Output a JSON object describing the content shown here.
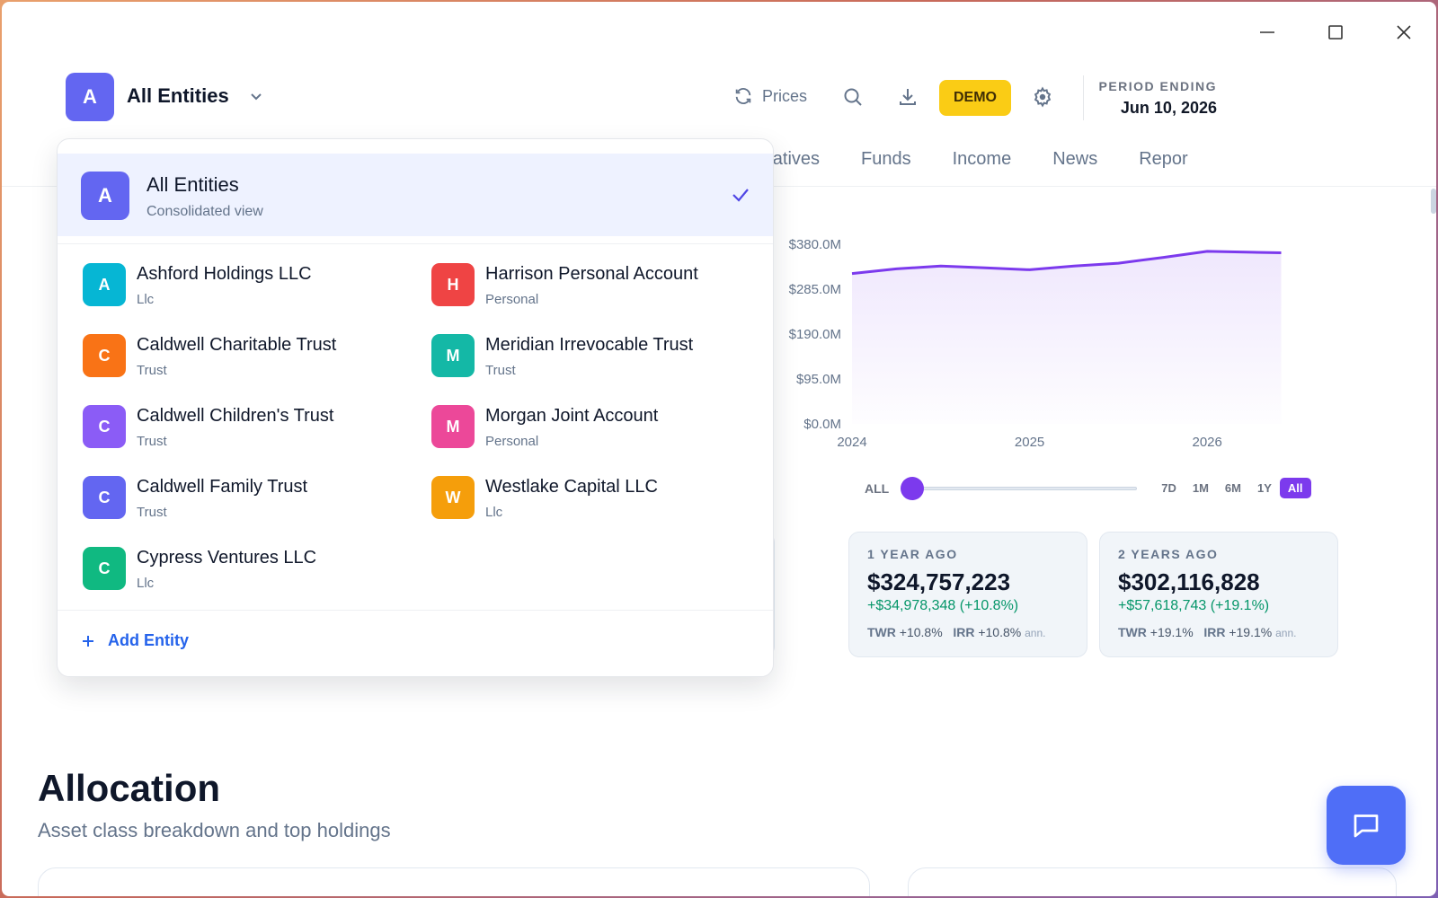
{
  "window": {
    "controls": [
      "minimize-icon",
      "maximize-icon",
      "close-icon"
    ]
  },
  "header": {
    "entity_initial": "A",
    "entity_title": "All Entities",
    "prices_label": "Prices",
    "demo_label": "DEMO",
    "period_label": "PERIOD ENDING",
    "period_value": "Jun 10, 2026",
    "icons": [
      "refresh-icon",
      "search-icon",
      "download-icon",
      "gear-icon"
    ]
  },
  "tabs": [
    {
      "label": "rnatives"
    },
    {
      "label": "Funds"
    },
    {
      "label": "Income"
    },
    {
      "label": "News"
    },
    {
      "label": "Repor"
    }
  ],
  "chart_data": {
    "type": "area",
    "x": [
      "2024-01",
      "2024-04",
      "2024-07",
      "2024-10",
      "2025-01",
      "2025-04",
      "2025-07",
      "2025-10",
      "2026-01",
      "2026-04",
      "2026-06"
    ],
    "values": [
      318,
      328,
      334,
      330,
      326,
      334,
      340,
      352,
      365,
      363,
      362
    ],
    "y_tick_labels": [
      "$380.0M",
      "$285.0M",
      "$190.0M",
      "$95.0M",
      "$0.0M"
    ],
    "x_tick_labels": [
      "2024",
      "2025",
      "2026"
    ],
    "ylim": [
      0,
      380
    ],
    "color": "#7c3aed"
  },
  "range": {
    "all_label": "ALL",
    "buttons": [
      {
        "label": "7D",
        "active": false
      },
      {
        "label": "1M",
        "active": false
      },
      {
        "label": "6M",
        "active": false
      },
      {
        "label": "1Y",
        "active": false
      },
      {
        "label": "All",
        "active": true
      }
    ]
  },
  "stats": [
    {
      "label": "1 YEAR AGO",
      "value": "$324,757,223",
      "change": "+$34,978,348 (+10.8%)",
      "twr_label": "TWR",
      "twr": "+10.8%",
      "irr_label": "IRR",
      "irr": "+10.8%",
      "ann": "ann."
    },
    {
      "label": "2 YEARS AGO",
      "value": "$302,116,828",
      "change": "+$57,618,743 (+19.1%)",
      "twr_label": "TWR",
      "twr": "+19.1%",
      "irr_label": "IRR",
      "irr": "+19.1%",
      "ann": "ann."
    }
  ],
  "allocation": {
    "title": "Allocation",
    "subtitle": "Asset class breakdown and top holdings"
  },
  "dropdown": {
    "selected": {
      "initial": "A",
      "title": "All Entities",
      "subtitle": "Consolidated view"
    },
    "items": [
      {
        "initial": "A",
        "name": "Ashford Holdings LLC",
        "type": "Llc",
        "color": "#06b6d4"
      },
      {
        "initial": "H",
        "name": "Harrison Personal Account",
        "type": "Personal",
        "color": "#ef4444"
      },
      {
        "initial": "C",
        "name": "Caldwell Charitable Trust",
        "type": "Trust",
        "color": "#f97316"
      },
      {
        "initial": "M",
        "name": "Meridian Irrevocable Trust",
        "type": "Trust",
        "color": "#14b8a6"
      },
      {
        "initial": "C",
        "name": "Caldwell Children's Trust",
        "type": "Trust",
        "color": "#8b5cf6"
      },
      {
        "initial": "M",
        "name": "Morgan Joint Account",
        "type": "Personal",
        "color": "#ec4899"
      },
      {
        "initial": "C",
        "name": "Caldwell Family Trust",
        "type": "Trust",
        "color": "#6366f1"
      },
      {
        "initial": "W",
        "name": "Westlake Capital LLC",
        "type": "Llc",
        "color": "#f59e0b"
      },
      {
        "initial": "C",
        "name": "Cypress Ventures LLC",
        "type": "Llc",
        "color": "#10b981"
      }
    ],
    "add_label": "Add Entity"
  }
}
